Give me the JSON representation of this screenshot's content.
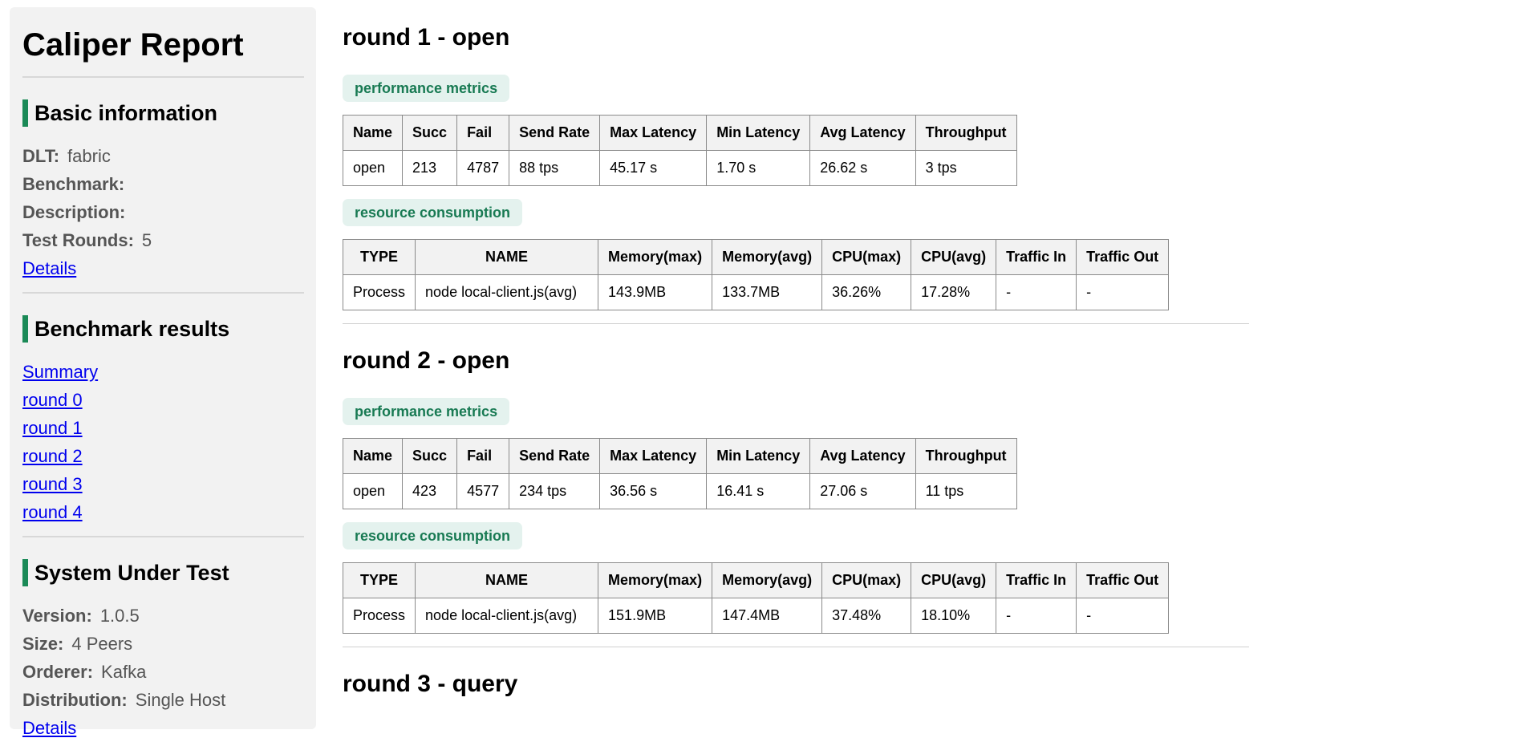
{
  "sidebar": {
    "title": "Caliper Report",
    "basic": {
      "heading": "Basic information",
      "rows": [
        {
          "label": "DLT:",
          "value": "fabric"
        },
        {
          "label": "Benchmark:",
          "value": ""
        },
        {
          "label": "Description:",
          "value": ""
        },
        {
          "label": "Test Rounds:",
          "value": "5"
        }
      ],
      "details_link": "Details"
    },
    "benchmark": {
      "heading": "Benchmark results",
      "links": [
        "Summary",
        "round 0",
        "round 1",
        "round 2",
        "round 3",
        "round 4"
      ]
    },
    "sut": {
      "heading": "System Under Test",
      "rows": [
        {
          "label": "Version:",
          "value": "1.0.5"
        },
        {
          "label": "Size:",
          "value": "4 Peers"
        },
        {
          "label": "Orderer:",
          "value": "Kafka"
        },
        {
          "label": "Distribution:",
          "value": "Single Host"
        }
      ],
      "details_link": "Details"
    }
  },
  "perf_headers": [
    "Name",
    "Succ",
    "Fail",
    "Send Rate",
    "Max Latency",
    "Min Latency",
    "Avg Latency",
    "Throughput"
  ],
  "res_headers": [
    "TYPE",
    "NAME",
    "Memory(max)",
    "Memory(avg)",
    "CPU(max)",
    "CPU(avg)",
    "Traffic In",
    "Traffic Out"
  ],
  "rounds": [
    {
      "title": "round 1 - open",
      "perf_label": "performance metrics",
      "perf_row": [
        "open",
        "213",
        "4787",
        "88 tps",
        "45.17 s",
        "1.70 s",
        "26.62 s",
        "3 tps"
      ],
      "res_label": "resource consumption",
      "res_row": [
        "Process",
        "node local-client.js(avg)",
        "143.9MB",
        "133.7MB",
        "36.26%",
        "17.28%",
        "-",
        "-"
      ]
    },
    {
      "title": "round 2 - open",
      "perf_label": "performance metrics",
      "perf_row": [
        "open",
        "423",
        "4577",
        "234 tps",
        "36.56 s",
        "16.41 s",
        "27.06 s",
        "11 tps"
      ],
      "res_label": "resource consumption",
      "res_row": [
        "Process",
        "node local-client.js(avg)",
        "151.9MB",
        "147.4MB",
        "37.48%",
        "18.10%",
        "-",
        "-"
      ]
    },
    {
      "title": "round 3 - query"
    }
  ]
}
